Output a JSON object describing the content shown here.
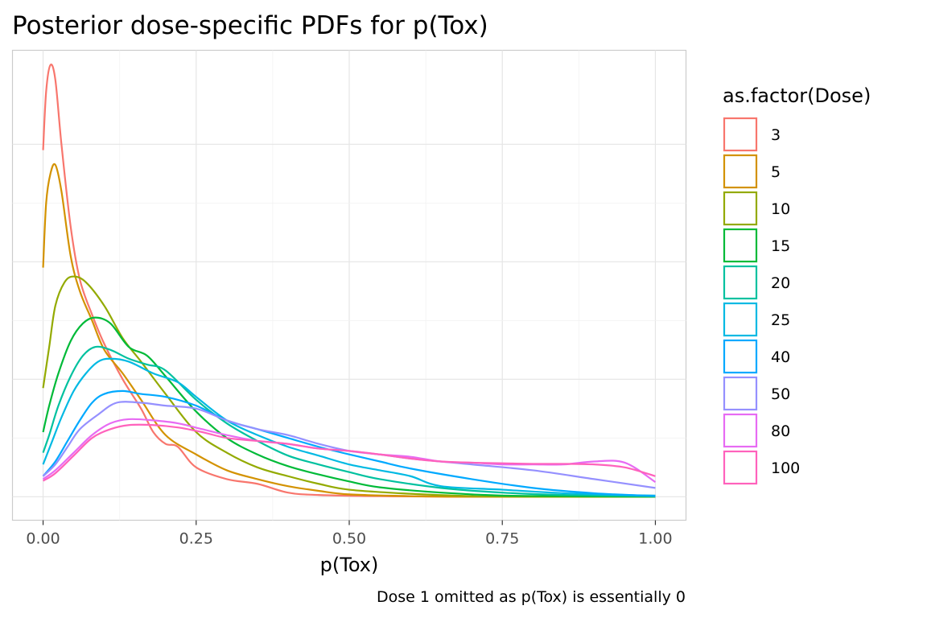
{
  "chart_data": {
    "type": "line",
    "title": "Posterior dose-specific PDFs for p(Tox)",
    "xlabel": "p(Tox)",
    "ylabel": "",
    "caption": "Dose 1 omitted as p(Tox) is essentially 0",
    "xlim": [
      -0.05,
      1.05
    ],
    "ylim": [
      -0.4,
      7.6
    ],
    "x_ticks": [
      0,
      0.25,
      0.5,
      0.75,
      1
    ],
    "x_tick_labels": [
      "0.00",
      "0.25",
      "0.50",
      "0.75",
      "1.00"
    ],
    "y_grid": [
      0,
      2,
      4,
      6
    ],
    "grid": true,
    "legend": {
      "title": "as.factor(Dose)",
      "position": "right"
    },
    "series": [
      {
        "name": "3",
        "color": "#F8766D",
        "points": [
          [
            0,
            5.9
          ],
          [
            0.005,
            6.9
          ],
          [
            0.012,
            7.35
          ],
          [
            0.02,
            7.1
          ],
          [
            0.03,
            6.0
          ],
          [
            0.045,
            4.6
          ],
          [
            0.06,
            3.7
          ],
          [
            0.08,
            3.1
          ],
          [
            0.1,
            2.6
          ],
          [
            0.13,
            2.0
          ],
          [
            0.16,
            1.5
          ],
          [
            0.18,
            1.1
          ],
          [
            0.2,
            0.9
          ],
          [
            0.22,
            0.85
          ],
          [
            0.25,
            0.5
          ],
          [
            0.3,
            0.3
          ],
          [
            0.35,
            0.22
          ],
          [
            0.4,
            0.07
          ],
          [
            0.45,
            0.03
          ],
          [
            0.55,
            0.01
          ],
          [
            0.7,
            0.0
          ],
          [
            1,
            0.0
          ]
        ]
      },
      {
        "name": "5",
        "color": "#D39200",
        "points": [
          [
            0,
            3.9
          ],
          [
            0.005,
            5.0
          ],
          [
            0.012,
            5.5
          ],
          [
            0.02,
            5.65
          ],
          [
            0.03,
            5.2
          ],
          [
            0.045,
            4.1
          ],
          [
            0.06,
            3.5
          ],
          [
            0.08,
            3.0
          ],
          [
            0.1,
            2.5
          ],
          [
            0.13,
            2.1
          ],
          [
            0.16,
            1.65
          ],
          [
            0.2,
            1.05
          ],
          [
            0.25,
            0.72
          ],
          [
            0.3,
            0.45
          ],
          [
            0.35,
            0.3
          ],
          [
            0.4,
            0.18
          ],
          [
            0.45,
            0.1
          ],
          [
            0.5,
            0.04
          ],
          [
            0.6,
            0.01
          ],
          [
            0.7,
            0.0
          ],
          [
            1,
            0.0
          ]
        ]
      },
      {
        "name": "10",
        "color": "#93AA00",
        "points": [
          [
            0,
            1.85
          ],
          [
            0.01,
            2.55
          ],
          [
            0.02,
            3.25
          ],
          [
            0.035,
            3.65
          ],
          [
            0.05,
            3.75
          ],
          [
            0.07,
            3.65
          ],
          [
            0.1,
            3.25
          ],
          [
            0.13,
            2.7
          ],
          [
            0.16,
            2.3
          ],
          [
            0.2,
            1.75
          ],
          [
            0.25,
            1.1
          ],
          [
            0.3,
            0.75
          ],
          [
            0.35,
            0.5
          ],
          [
            0.4,
            0.35
          ],
          [
            0.45,
            0.22
          ],
          [
            0.5,
            0.12
          ],
          [
            0.6,
            0.05
          ],
          [
            0.7,
            0.01
          ],
          [
            0.8,
            0.0
          ],
          [
            1,
            0.0
          ]
        ]
      },
      {
        "name": "15",
        "color": "#00BA38",
        "points": [
          [
            0,
            1.1
          ],
          [
            0.01,
            1.55
          ],
          [
            0.025,
            2.1
          ],
          [
            0.045,
            2.65
          ],
          [
            0.065,
            2.95
          ],
          [
            0.085,
            3.05
          ],
          [
            0.11,
            2.95
          ],
          [
            0.14,
            2.55
          ],
          [
            0.17,
            2.4
          ],
          [
            0.2,
            2.05
          ],
          [
            0.25,
            1.45
          ],
          [
            0.3,
            1.0
          ],
          [
            0.35,
            0.72
          ],
          [
            0.4,
            0.52
          ],
          [
            0.45,
            0.38
          ],
          [
            0.5,
            0.26
          ],
          [
            0.55,
            0.16
          ],
          [
            0.65,
            0.07
          ],
          [
            0.75,
            0.02
          ],
          [
            0.85,
            0.01
          ],
          [
            1,
            0.0
          ]
        ]
      },
      {
        "name": "20",
        "color": "#00C19F",
        "points": [
          [
            0,
            0.75
          ],
          [
            0.01,
            1.05
          ],
          [
            0.025,
            1.55
          ],
          [
            0.045,
            2.05
          ],
          [
            0.065,
            2.4
          ],
          [
            0.085,
            2.55
          ],
          [
            0.11,
            2.5
          ],
          [
            0.14,
            2.35
          ],
          [
            0.17,
            2.25
          ],
          [
            0.2,
            2.15
          ],
          [
            0.25,
            1.65
          ],
          [
            0.3,
            1.25
          ],
          [
            0.35,
            0.95
          ],
          [
            0.4,
            0.7
          ],
          [
            0.45,
            0.55
          ],
          [
            0.5,
            0.42
          ],
          [
            0.55,
            0.3
          ],
          [
            0.65,
            0.15
          ],
          [
            0.75,
            0.07
          ],
          [
            0.85,
            0.03
          ],
          [
            1,
            0.01
          ]
        ]
      },
      {
        "name": "25",
        "color": "#00B9E3",
        "points": [
          [
            0,
            0.55
          ],
          [
            0.015,
            0.95
          ],
          [
            0.03,
            1.35
          ],
          [
            0.05,
            1.8
          ],
          [
            0.07,
            2.1
          ],
          [
            0.09,
            2.3
          ],
          [
            0.11,
            2.35
          ],
          [
            0.14,
            2.3
          ],
          [
            0.18,
            2.1
          ],
          [
            0.22,
            1.95
          ],
          [
            0.25,
            1.7
          ],
          [
            0.3,
            1.3
          ],
          [
            0.35,
            1.05
          ],
          [
            0.4,
            0.85
          ],
          [
            0.45,
            0.7
          ],
          [
            0.5,
            0.55
          ],
          [
            0.55,
            0.45
          ],
          [
            0.6,
            0.35
          ],
          [
            0.65,
            0.18
          ],
          [
            0.75,
            0.12
          ],
          [
            0.85,
            0.06
          ],
          [
            0.95,
            0.03
          ],
          [
            1,
            0.02
          ]
        ]
      },
      {
        "name": "40",
        "color": "#00A9FF",
        "points": [
          [
            0,
            0.35
          ],
          [
            0.02,
            0.6
          ],
          [
            0.04,
            0.95
          ],
          [
            0.06,
            1.3
          ],
          [
            0.08,
            1.6
          ],
          [
            0.1,
            1.75
          ],
          [
            0.13,
            1.8
          ],
          [
            0.16,
            1.75
          ],
          [
            0.2,
            1.7
          ],
          [
            0.25,
            1.55
          ],
          [
            0.3,
            1.3
          ],
          [
            0.35,
            1.15
          ],
          [
            0.4,
            1.0
          ],
          [
            0.45,
            0.85
          ],
          [
            0.5,
            0.72
          ],
          [
            0.55,
            0.6
          ],
          [
            0.6,
            0.48
          ],
          [
            0.7,
            0.3
          ],
          [
            0.8,
            0.15
          ],
          [
            0.9,
            0.06
          ],
          [
            1,
            0.01
          ]
        ]
      },
      {
        "name": "50",
        "color": "#9590FF",
        "points": [
          [
            0,
            0.35
          ],
          [
            0.02,
            0.55
          ],
          [
            0.04,
            0.85
          ],
          [
            0.06,
            1.15
          ],
          [
            0.09,
            1.4
          ],
          [
            0.12,
            1.6
          ],
          [
            0.16,
            1.6
          ],
          [
            0.2,
            1.55
          ],
          [
            0.25,
            1.5
          ],
          [
            0.3,
            1.3
          ],
          [
            0.35,
            1.15
          ],
          [
            0.4,
            1.05
          ],
          [
            0.45,
            0.9
          ],
          [
            0.5,
            0.78
          ],
          [
            0.55,
            0.72
          ],
          [
            0.6,
            0.65
          ],
          [
            0.7,
            0.55
          ],
          [
            0.8,
            0.45
          ],
          [
            0.9,
            0.3
          ],
          [
            1,
            0.15
          ]
        ]
      },
      {
        "name": "80",
        "color": "#E76BF3",
        "points": [
          [
            0,
            0.3
          ],
          [
            0.02,
            0.45
          ],
          [
            0.05,
            0.75
          ],
          [
            0.08,
            1.05
          ],
          [
            0.11,
            1.25
          ],
          [
            0.14,
            1.32
          ],
          [
            0.18,
            1.3
          ],
          [
            0.22,
            1.25
          ],
          [
            0.26,
            1.15
          ],
          [
            0.3,
            1.05
          ],
          [
            0.35,
            0.95
          ],
          [
            0.4,
            0.9
          ],
          [
            0.45,
            0.82
          ],
          [
            0.5,
            0.78
          ],
          [
            0.55,
            0.72
          ],
          [
            0.6,
            0.68
          ],
          [
            0.65,
            0.6
          ],
          [
            0.7,
            0.58
          ],
          [
            0.75,
            0.55
          ],
          [
            0.8,
            0.55
          ],
          [
            0.85,
            0.55
          ],
          [
            0.9,
            0.6
          ],
          [
            0.95,
            0.58
          ],
          [
            1,
            0.25
          ]
        ]
      },
      {
        "name": "100",
        "color": "#FF62BC",
        "points": [
          [
            0,
            0.27
          ],
          [
            0.02,
            0.4
          ],
          [
            0.05,
            0.7
          ],
          [
            0.08,
            1.0
          ],
          [
            0.11,
            1.15
          ],
          [
            0.14,
            1.22
          ],
          [
            0.18,
            1.22
          ],
          [
            0.22,
            1.18
          ],
          [
            0.26,
            1.1
          ],
          [
            0.3,
            1.0
          ],
          [
            0.35,
            0.95
          ],
          [
            0.4,
            0.9
          ],
          [
            0.45,
            0.82
          ],
          [
            0.5,
            0.78
          ],
          [
            0.55,
            0.72
          ],
          [
            0.6,
            0.65
          ],
          [
            0.65,
            0.6
          ],
          [
            0.7,
            0.58
          ],
          [
            0.75,
            0.57
          ],
          [
            0.8,
            0.56
          ],
          [
            0.85,
            0.56
          ],
          [
            0.9,
            0.55
          ],
          [
            0.95,
            0.5
          ],
          [
            1,
            0.35
          ]
        ]
      }
    ]
  }
}
